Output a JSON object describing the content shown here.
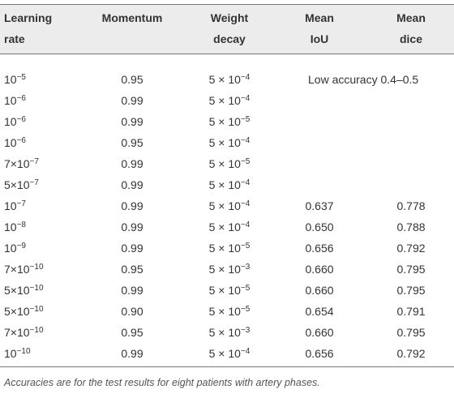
{
  "table": {
    "headers": [
      [
        "Learning",
        "rate"
      ],
      [
        "Momentum"
      ],
      [
        "Weight",
        "decay"
      ],
      [
        "Mean",
        "IoU"
      ],
      [
        "Mean",
        "dice"
      ]
    ],
    "low_accuracy_note": "Low accuracy 0.4–0.5",
    "rows": [
      {
        "learning_rate": {
          "base": "10",
          "exp": "−5"
        },
        "momentum": "0.95",
        "weight_decay": {
          "base": "5 × 10",
          "exp": "−4"
        }
      },
      {
        "learning_rate": {
          "base": "10",
          "exp": "−6"
        },
        "momentum": "0.99",
        "weight_decay": {
          "base": "5 × 10",
          "exp": "−4"
        }
      },
      {
        "learning_rate": {
          "base": "10",
          "exp": "−6"
        },
        "momentum": "0.99",
        "weight_decay": {
          "base": "5 × 10",
          "exp": "−5"
        }
      },
      {
        "learning_rate": {
          "base": "10",
          "exp": "−6"
        },
        "momentum": "0.95",
        "weight_decay": {
          "base": "5 × 10",
          "exp": "−4"
        }
      },
      {
        "learning_rate": {
          "base": "7×10",
          "exp": "−7"
        },
        "momentum": "0.99",
        "weight_decay": {
          "base": "5 × 10",
          "exp": "−5"
        }
      },
      {
        "learning_rate": {
          "base": "5×10",
          "exp": "−7"
        },
        "momentum": "0.99",
        "weight_decay": {
          "base": "5 × 10",
          "exp": "−4"
        }
      },
      {
        "learning_rate": {
          "base": "10",
          "exp": "−7"
        },
        "momentum": "0.99",
        "weight_decay": {
          "base": "5 × 10",
          "exp": "−4"
        },
        "mean_iou": "0.637",
        "mean_dice": "0.778"
      },
      {
        "learning_rate": {
          "base": "10",
          "exp": "−8"
        },
        "momentum": "0.99",
        "weight_decay": {
          "base": "5 × 10",
          "exp": "−4"
        },
        "mean_iou": "0.650",
        "mean_dice": "0.788"
      },
      {
        "learning_rate": {
          "base": "10",
          "exp": "−9"
        },
        "momentum": "0.99",
        "weight_decay": {
          "base": "5 × 10",
          "exp": "−5"
        },
        "mean_iou": "0.656",
        "mean_dice": "0.792"
      },
      {
        "learning_rate": {
          "base": "7×10",
          "exp": "−10"
        },
        "momentum": "0.95",
        "weight_decay": {
          "base": "5 × 10",
          "exp": "−3"
        },
        "mean_iou": "0.660",
        "mean_dice": "0.795"
      },
      {
        "learning_rate": {
          "base": "5×10",
          "exp": "−10"
        },
        "momentum": "0.99",
        "weight_decay": {
          "base": "5 × 10",
          "exp": "−5"
        },
        "mean_iou": "0.660",
        "mean_dice": "0.795"
      },
      {
        "learning_rate": {
          "base": "5×10",
          "exp": "−10"
        },
        "momentum": "0.90",
        "weight_decay": {
          "base": "5 × 10",
          "exp": "−5"
        },
        "mean_iou": "0.654",
        "mean_dice": "0.791"
      },
      {
        "learning_rate": {
          "base": "7×10",
          "exp": "−10"
        },
        "momentum": "0.95",
        "weight_decay": {
          "base": "5 × 10",
          "exp": "−3"
        },
        "mean_iou": "0.660",
        "mean_dice": "0.795"
      },
      {
        "learning_rate": {
          "base": "10",
          "exp": "−10"
        },
        "momentum": "0.99",
        "weight_decay": {
          "base": "5 × 10",
          "exp": "−4"
        },
        "mean_iou": "0.656",
        "mean_dice": "0.792"
      }
    ],
    "footnote": "Accuracies are for the test results for eight patients with artery phases."
  }
}
